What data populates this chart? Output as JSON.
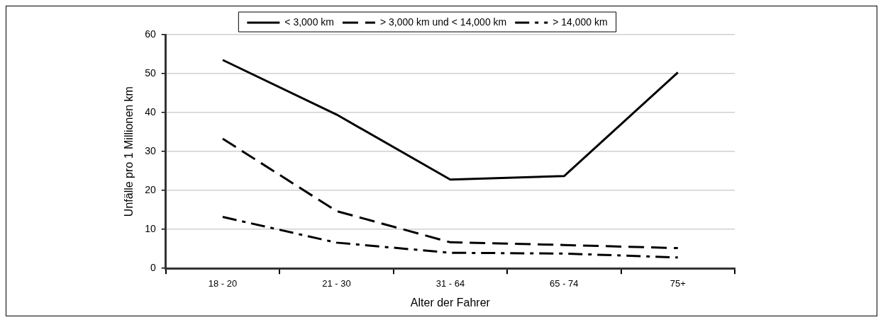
{
  "chart_data": {
    "type": "line",
    "xlabel": "Alter der Fahrer",
    "ylabel": "Unfälle pro 1 Millionen km",
    "categories": [
      "18 - 20",
      "21 - 30",
      "31 - 64",
      "65 - 74",
      "75+"
    ],
    "series": [
      {
        "name": "< 3,000 km",
        "color": "#000000",
        "line_style": "solid",
        "values": [
          53.5,
          39.5,
          22.8,
          23.7,
          50.3
        ]
      },
      {
        "name": "> 3,000 km und < 14,000 km",
        "color": "#000000",
        "line_style": "dashed",
        "values": [
          33.3,
          14.7,
          6.7,
          6.0,
          5.2
        ]
      },
      {
        "name": "> 14,000 km",
        "color": "#000000",
        "line_style": "dashdot",
        "values": [
          13.2,
          6.6,
          4.0,
          3.8,
          2.8
        ]
      }
    ],
    "ylim": [
      0,
      60
    ],
    "yticks": [
      0,
      10,
      20,
      30,
      40,
      50,
      60
    ],
    "grid": "y",
    "legend": "top",
    "marker": "none"
  }
}
